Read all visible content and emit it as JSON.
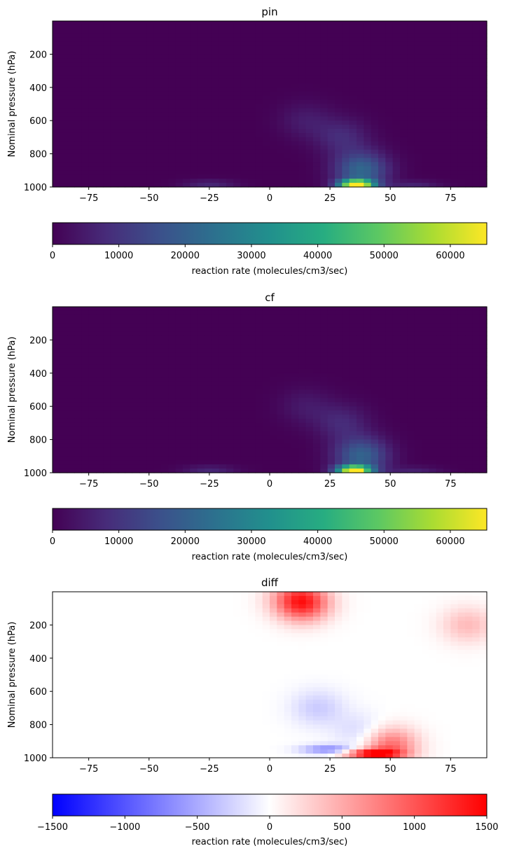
{
  "chart_data": [
    {
      "type": "heatmap",
      "title": "pin",
      "ylabel": "Nominal pressure (hPa)",
      "xlabel": "",
      "xlim": [
        -90,
        90
      ],
      "ylim": [
        1000,
        0
      ],
      "x_ticks": [
        "−75",
        "−50",
        "−25",
        "0",
        "25",
        "50",
        "75"
      ],
      "x_tick_values": [
        -75,
        -50,
        -25,
        0,
        25,
        50,
        75
      ],
      "y_ticks": [
        "200",
        "400",
        "600",
        "800",
        "1000"
      ],
      "y_tick_values": [
        200,
        400,
        600,
        800,
        1000
      ],
      "colormap": "viridis",
      "hotspots": [
        {
          "lat": 36,
          "p": 985,
          "value": 65000
        },
        {
          "lat": 38,
          "p": 900,
          "value": 22000
        },
        {
          "lat": 30,
          "p": 700,
          "value": 8000
        },
        {
          "lat": 15,
          "p": 600,
          "value": 5000
        },
        {
          "lat": -25,
          "p": 985,
          "value": 7000
        },
        {
          "lat": 60,
          "p": 990,
          "value": 6000
        }
      ],
      "colorbar": {
        "label": "reaction rate (molecules/cm3/sec)",
        "range": [
          0,
          65500
        ],
        "ticks": [
          "0",
          "10000",
          "20000",
          "30000",
          "40000",
          "50000",
          "60000"
        ],
        "tick_values": [
          0,
          10000,
          20000,
          30000,
          40000,
          50000,
          60000
        ]
      }
    },
    {
      "type": "heatmap",
      "title": "cf",
      "ylabel": "Nominal pressure (hPa)",
      "xlabel": "",
      "xlim": [
        -90,
        90
      ],
      "ylim": [
        1000,
        0
      ],
      "x_ticks": [
        "−75",
        "−50",
        "−25",
        "0",
        "25",
        "50",
        "75"
      ],
      "x_tick_values": [
        -75,
        -50,
        -25,
        0,
        25,
        50,
        75
      ],
      "y_ticks": [
        "200",
        "400",
        "600",
        "800",
        "1000"
      ],
      "y_tick_values": [
        200,
        400,
        600,
        800,
        1000
      ],
      "colormap": "viridis",
      "hotspots": [
        {
          "lat": 35,
          "p": 985,
          "value": 63000
        },
        {
          "lat": 38,
          "p": 900,
          "value": 21000
        },
        {
          "lat": 30,
          "p": 700,
          "value": 7500
        },
        {
          "lat": 15,
          "p": 600,
          "value": 4500
        },
        {
          "lat": -25,
          "p": 985,
          "value": 7000
        },
        {
          "lat": 60,
          "p": 990,
          "value": 5500
        }
      ],
      "colorbar": {
        "label": "reaction rate (molecules/cm3/sec)",
        "range": [
          0,
          65500
        ],
        "ticks": [
          "0",
          "10000",
          "20000",
          "30000",
          "40000",
          "50000",
          "60000"
        ],
        "tick_values": [
          0,
          10000,
          20000,
          30000,
          40000,
          50000,
          60000
        ]
      }
    },
    {
      "type": "heatmap",
      "title": "diff",
      "ylabel": "Nominal pressure (hPa)",
      "xlabel": "",
      "xlim": [
        -90,
        90
      ],
      "ylim": [
        1000,
        0
      ],
      "x_ticks": [
        "−75",
        "−50",
        "−25",
        "0",
        "25",
        "50",
        "75"
      ],
      "x_tick_values": [
        -75,
        -50,
        -25,
        0,
        25,
        50,
        75
      ],
      "y_ticks": [
        "200",
        "400",
        "600",
        "800",
        "1000"
      ],
      "y_tick_values": [
        200,
        400,
        600,
        800,
        1000
      ],
      "colormap": "bwr",
      "hotspots": [
        {
          "lat": 42,
          "p": 975,
          "value": 1400
        },
        {
          "lat": 50,
          "p": 930,
          "value": 900
        },
        {
          "lat": 14,
          "p": 70,
          "value": 1100
        },
        {
          "lat": 10,
          "p": 30,
          "value": 400
        },
        {
          "lat": 82,
          "p": 200,
          "value": 400
        },
        {
          "lat": 24,
          "p": 950,
          "value": -700
        },
        {
          "lat": 20,
          "p": 700,
          "value": -300
        },
        {
          "lat": 38,
          "p": 850,
          "value": -250
        }
      ],
      "colorbar": {
        "label": "reaction rate (molecules/cm3/sec)",
        "range": [
          -1500,
          1500
        ],
        "ticks": [
          "−1500",
          "−1000",
          "−500",
          "0",
          "500",
          "1000",
          "1500"
        ],
        "tick_values": [
          -1500,
          -1000,
          -500,
          0,
          500,
          1000,
          1500
        ]
      }
    }
  ]
}
